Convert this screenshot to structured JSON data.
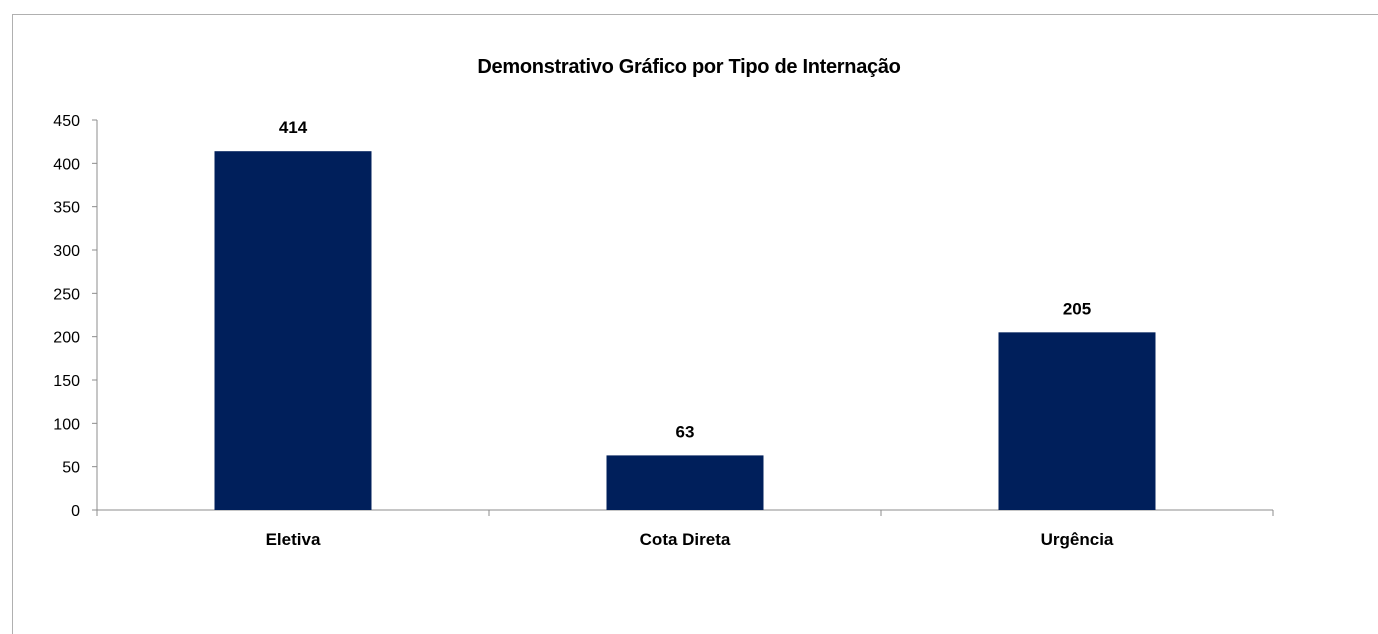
{
  "chart_data": {
    "type": "bar",
    "title": "Demonstrativo Gráfico por Tipo de Internação",
    "categories": [
      "Eletiva",
      "Cota Direta",
      "Urgência"
    ],
    "values": [
      414,
      63,
      205
    ],
    "ylim": [
      0,
      450
    ],
    "yticks": [
      0,
      50,
      100,
      150,
      200,
      250,
      300,
      350,
      400,
      450
    ],
    "xlabel": "",
    "ylabel": "",
    "grid": false,
    "legend": "none",
    "bar_color": "#001f5b"
  }
}
